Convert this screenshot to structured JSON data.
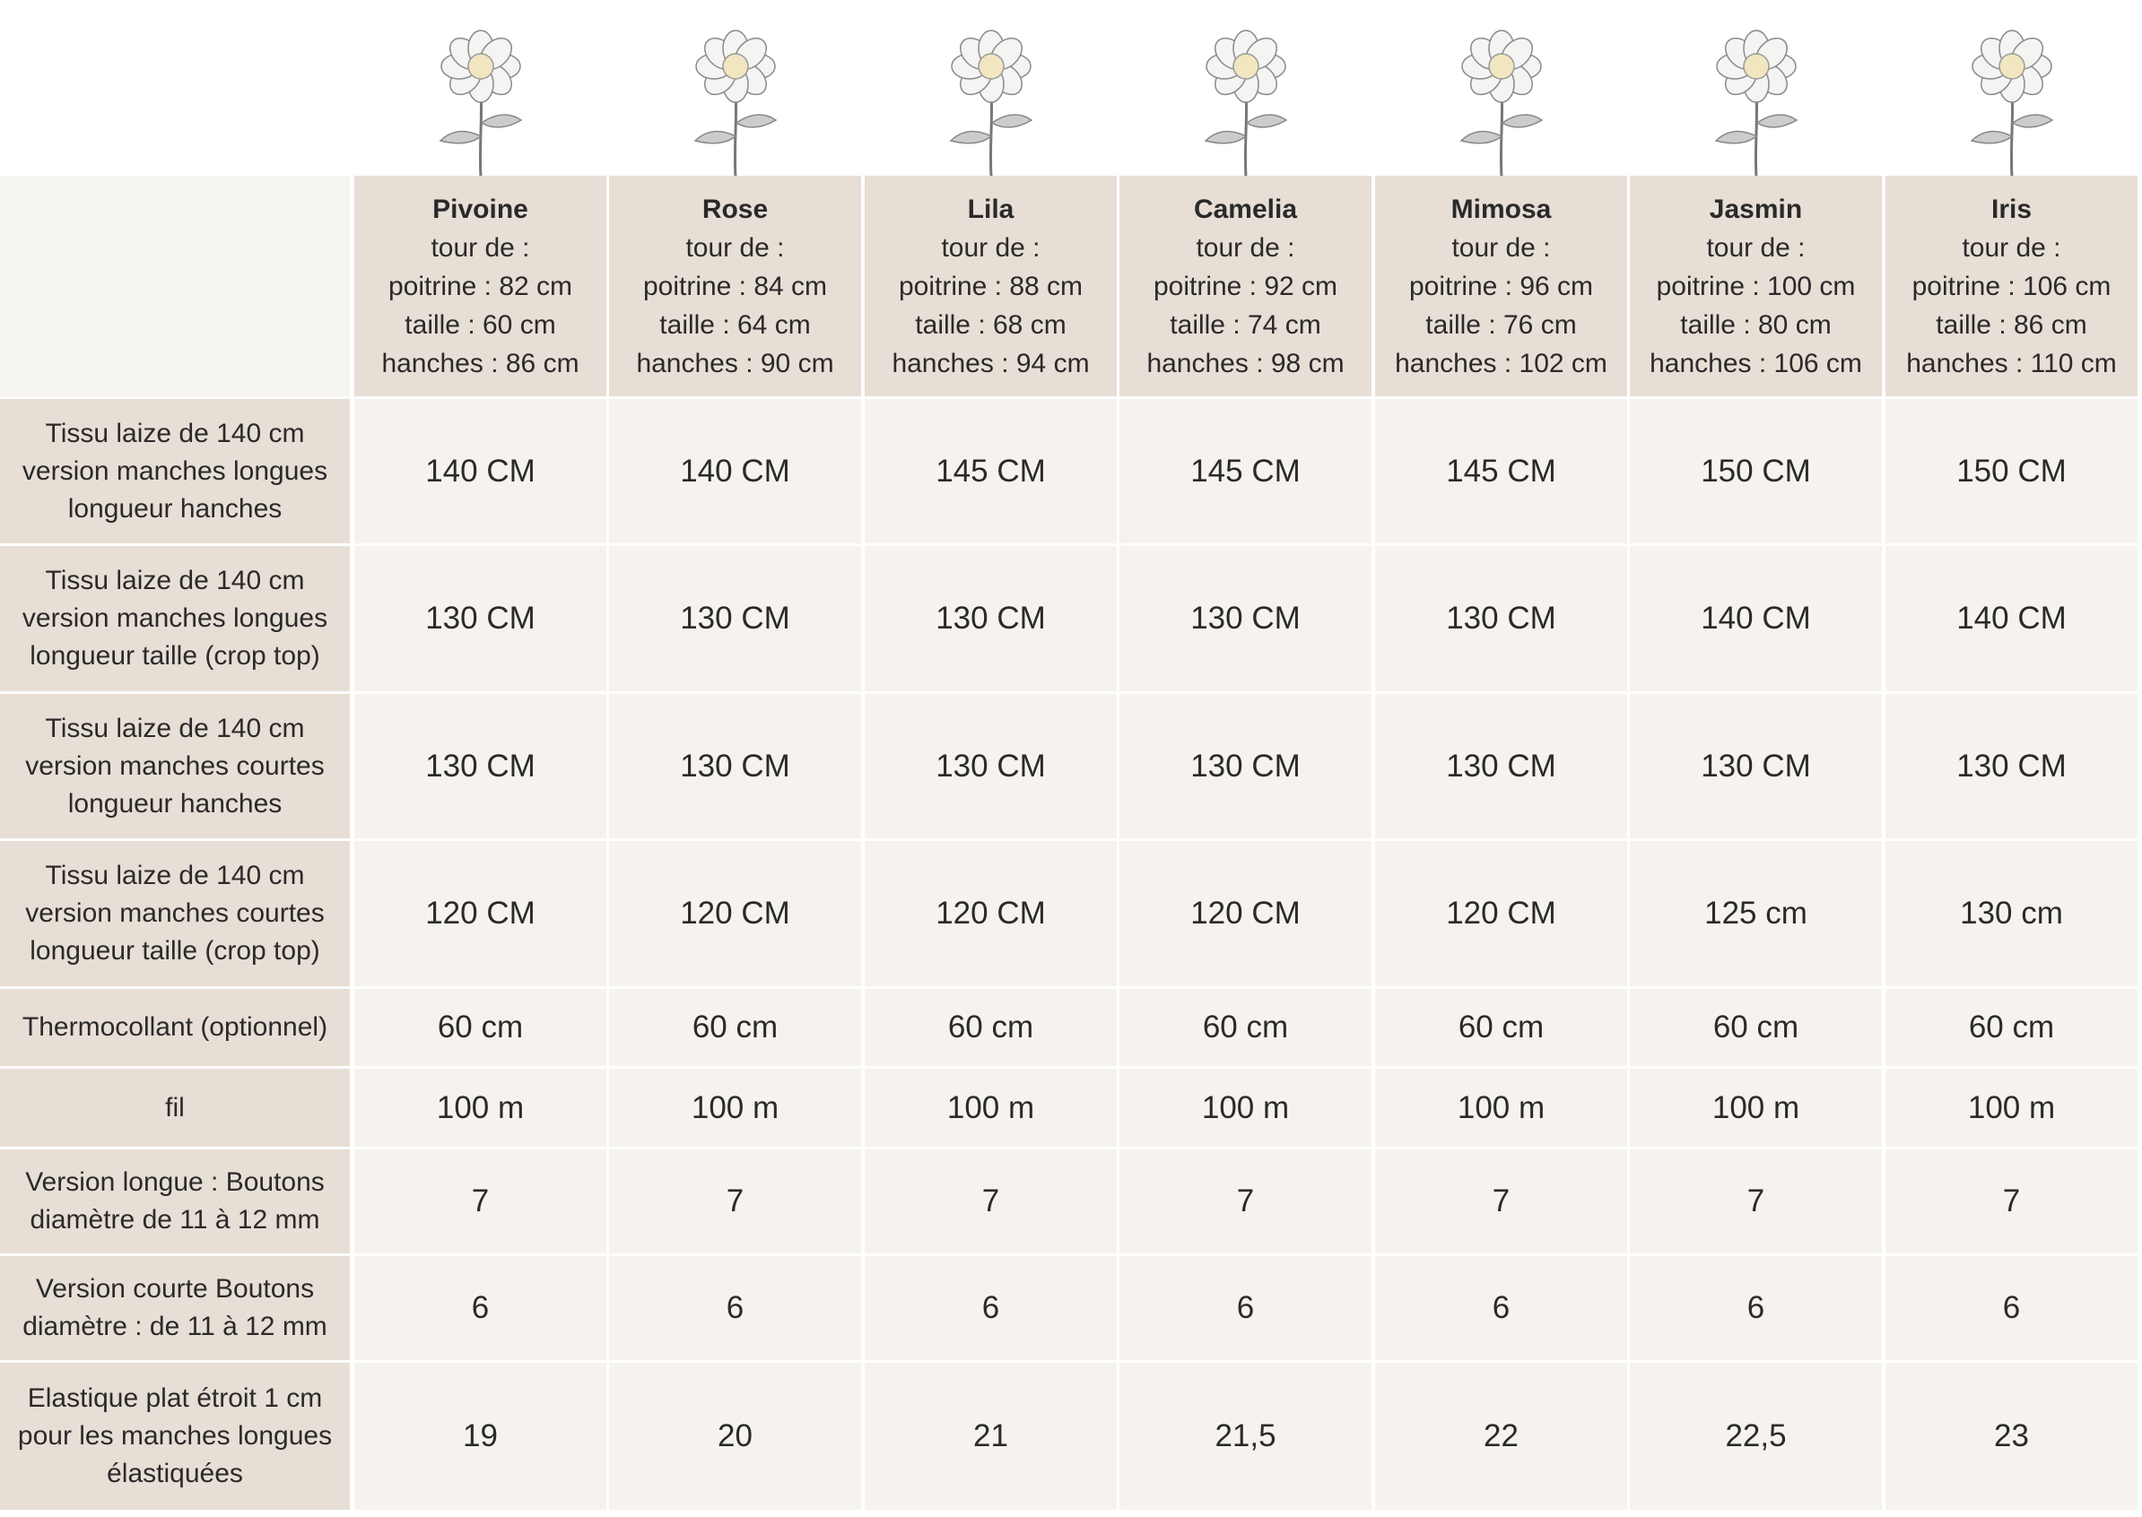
{
  "header": {
    "sizes": [
      {
        "name": "Pivoine",
        "lines": [
          "tour de :",
          "poitrine : 82 cm",
          "taille : 60 cm",
          "hanches : 86 cm"
        ]
      },
      {
        "name": "Rose",
        "lines": [
          "tour de :",
          "poitrine : 84 cm",
          "taille : 64 cm",
          "hanches : 90 cm"
        ]
      },
      {
        "name": "Lila",
        "lines": [
          "tour de :",
          "poitrine : 88 cm",
          "taille : 68 cm",
          "hanches : 94 cm"
        ]
      },
      {
        "name": "Camelia",
        "lines": [
          "tour de :",
          "poitrine : 92 cm",
          "taille : 74 cm",
          "hanches : 98 cm"
        ]
      },
      {
        "name": "Mimosa",
        "lines": [
          "tour de :",
          "poitrine : 96 cm",
          "taille : 76 cm",
          "hanches : 102 cm"
        ]
      },
      {
        "name": "Jasmin",
        "lines": [
          "tour de :",
          "poitrine : 100 cm",
          "taille : 80 cm",
          "hanches : 106 cm"
        ]
      },
      {
        "name": "Iris",
        "lines": [
          "tour de :",
          "poitrine : 106 cm",
          "taille : 86 cm",
          "hanches : 110 cm"
        ]
      }
    ]
  },
  "table": {
    "rows": [
      {
        "label": [
          "Tissu laize de 140 cm",
          "version manches longues",
          "longueur hanches"
        ],
        "cells": [
          "140 CM",
          "140 CM",
          "145 CM",
          "145 CM",
          "145 CM",
          "150 CM",
          "150 CM"
        ]
      },
      {
        "label": [
          "Tissu laize de 140 cm",
          "version manches longues",
          "longueur taille (crop top)"
        ],
        "cells": [
          "130 CM",
          "130 CM",
          "130 CM",
          "130 CM",
          "130 CM",
          "140 CM",
          "140 CM"
        ]
      },
      {
        "label": [
          "Tissu laize de 140 cm",
          "version manches courtes",
          "longueur hanches"
        ],
        "cells": [
          "130 CM",
          "130 CM",
          "130 CM",
          "130 CM",
          "130 CM",
          "130 CM",
          "130 CM"
        ]
      },
      {
        "label": [
          "Tissu laize de 140 cm",
          "version manches courtes",
          "longueur taille (crop top)"
        ],
        "cells": [
          "120 CM",
          "120 CM",
          "120 CM",
          "120 CM",
          "120 CM",
          "125 cm",
          "130 cm"
        ]
      },
      {
        "label": [
          "Thermocollant (optionnel)"
        ],
        "cells": [
          "60 cm",
          "60 cm",
          "60 cm",
          "60 cm",
          "60 cm",
          "60 cm",
          "60 cm"
        ]
      },
      {
        "label": [
          "fil"
        ],
        "cells": [
          "100 m",
          "100 m",
          "100 m",
          "100 m",
          "100 m",
          "100 m",
          "100 m"
        ]
      },
      {
        "label": [
          "Version longue : Boutons",
          "diamètre de 11 à 12 mm"
        ],
        "cells": [
          "7",
          "7",
          "7",
          "7",
          "7",
          "7",
          "7"
        ]
      },
      {
        "label": [
          "Version courte  Boutons",
          "diamètre : de 11 à 12 mm"
        ],
        "cells": [
          "6",
          "6",
          "6",
          "6",
          "6",
          "6",
          "6"
        ]
      },
      {
        "label": [
          "Elastique plat étroit 1 cm",
          "pour les manches longues",
          "élastiquées"
        ],
        "cells": [
          "19",
          "20",
          "21",
          "21,5",
          "22",
          "22,5",
          "23"
        ]
      }
    ]
  }
}
